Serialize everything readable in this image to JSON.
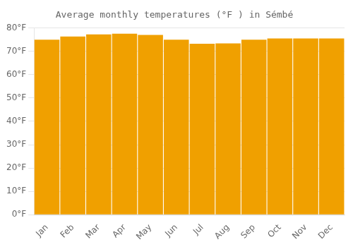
{
  "chart_data": {
    "type": "bar",
    "title": "Average monthly temperatures (°F ) in Sémbé",
    "categories": [
      "Jan",
      "Feb",
      "Mar",
      "Apr",
      "May",
      "Jun",
      "Jul",
      "Aug",
      "Sep",
      "Oct",
      "Nov",
      "Dec"
    ],
    "values": [
      75.0,
      76.3,
      77.2,
      77.5,
      77.0,
      75.0,
      73.2,
      73.4,
      75.0,
      75.5,
      75.5,
      75.5
    ],
    "color": "#F0A000",
    "ylim": [
      0,
      80
    ],
    "yticks": [
      {
        "value": 0,
        "label": "0°F"
      },
      {
        "value": 10,
        "label": "10°F"
      },
      {
        "value": 20,
        "label": "20°F"
      },
      {
        "value": 30,
        "label": "30°F"
      },
      {
        "value": 40,
        "label": "40°F"
      },
      {
        "value": 50,
        "label": "50°F"
      },
      {
        "value": 60,
        "label": "60°F"
      },
      {
        "value": 70,
        "label": "70°F"
      },
      {
        "value": 80,
        "label": "80°F"
      }
    ],
    "grid": true
  }
}
